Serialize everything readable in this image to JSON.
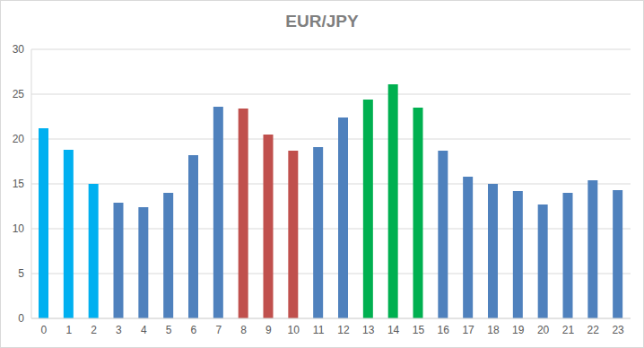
{
  "chart_data": {
    "type": "bar",
    "title": "EUR/JPY",
    "categories": [
      "0",
      "1",
      "2",
      "3",
      "4",
      "5",
      "6",
      "7",
      "8",
      "9",
      "10",
      "11",
      "12",
      "13",
      "14",
      "15",
      "16",
      "17",
      "18",
      "19",
      "20",
      "21",
      "22",
      "23"
    ],
    "values": [
      21.2,
      18.8,
      15.0,
      12.9,
      12.4,
      14.0,
      18.2,
      23.6,
      23.4,
      20.5,
      18.7,
      19.1,
      22.4,
      24.4,
      26.1,
      23.5,
      18.7,
      15.8,
      15.0,
      14.2,
      12.7,
      14.0,
      15.4,
      14.3
    ],
    "colors": [
      "#00b0f0",
      "#00b0f0",
      "#00b0f0",
      "#4f81bd",
      "#4f81bd",
      "#4f81bd",
      "#4f81bd",
      "#4f81bd",
      "#c0504d",
      "#c0504d",
      "#c0504d",
      "#4f81bd",
      "#4f81bd",
      "#00b050",
      "#00b050",
      "#00b050",
      "#4f81bd",
      "#4f81bd",
      "#4f81bd",
      "#4f81bd",
      "#4f81bd",
      "#4f81bd",
      "#4f81bd",
      "#4f81bd"
    ],
    "ylim": [
      0,
      30
    ],
    "yticks": [
      0,
      5,
      10,
      15,
      20,
      25,
      30
    ],
    "grid": true
  }
}
